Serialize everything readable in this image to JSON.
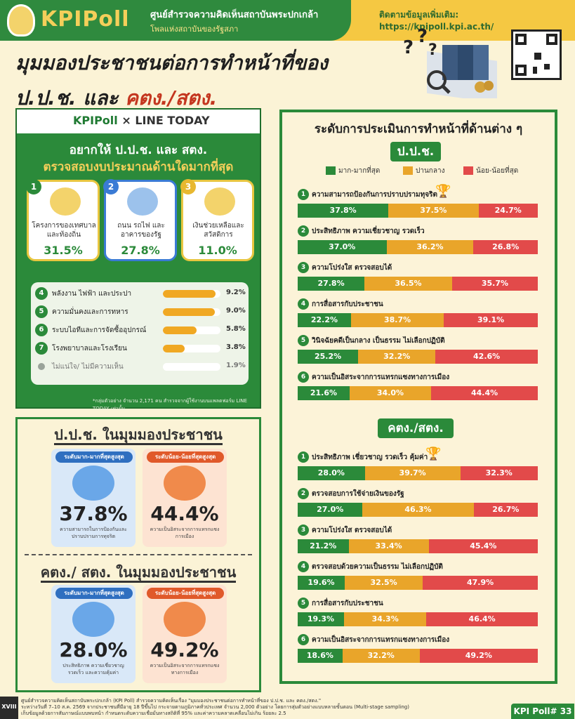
{
  "header": {
    "logo_text": "KPIPoll",
    "org_line1": "ศูนย์สำรวจความคิดเห็นสถาบันพระปกเกล้า",
    "org_line2": "โพลแห่งสถาบันของรัฐสภา",
    "contact": "ติดตามข้อมูลเพิ่มเติม: https://kpipoll.kpi.ac.th/",
    "title_line1": "มุมมองประชาชนต่อการทำหน้าที่ของ",
    "title_line2_a": "ป.ป.ช. และ ",
    "title_line2_b": "คตง./สตง."
  },
  "left_panel": {
    "brand_a": "KPIPoll",
    "brand_sep": "×",
    "brand_b": "LINE TODAY",
    "question_line1": "อยากให้ ป.ป.ช. และ สตง.",
    "question_line2": "ตรวจสอบงบประมาณด้านใดมากที่สุด",
    "top3": [
      {
        "num": "1",
        "label": "โครงการของเทศบาลและท้องถิ่น",
        "pct": "31.5%",
        "color": "#2b8a3a"
      },
      {
        "num": "2",
        "label": "ถนน รถไฟ และอาคารของรัฐ",
        "pct": "27.8%",
        "color": "#3a7bd5"
      },
      {
        "num": "3",
        "label": "เงินช่วยเหลือและสวัสดิการ",
        "pct": "11.0%",
        "color": "#e8b830"
      }
    ],
    "others": [
      {
        "num": "4",
        "label": "พลังงาน ไฟฟ้า และประปา",
        "value": 9.2,
        "pct": "9.2%"
      },
      {
        "num": "5",
        "label": "ความมั่นคงและการทหาร",
        "value": 9.0,
        "pct": "9.0%"
      },
      {
        "num": "6",
        "label": "ระบบไอทีและการจัดซื้ออุปกรณ์",
        "value": 5.8,
        "pct": "5.8%"
      },
      {
        "num": "7",
        "label": "โรงพยาบาลและโรงเรียน",
        "value": 3.8,
        "pct": "3.8%"
      },
      {
        "num": "",
        "label": "ไม่แน่ใจ/ ไม่มีความเห็น",
        "value": 1.9,
        "pct": "1.9%"
      }
    ],
    "note": "*กลุ่มตัวอย่าง จำนวน 2,171 คน สำรวจจากผู้ใช้งานบนแพลตฟอร์ม LINE TODAY เท่านั้น"
  },
  "view_panel": {
    "nacc_heading": "ป.ป.ช. ในมุมมองประชาชน",
    "nacc_high": {
      "tag": "ระดับมาก-มากที่สุดสูงสุด",
      "value": "37.8%",
      "caption": "ความสามารถในการป้องกันและปราบปรามการทุจริต"
    },
    "nacc_low": {
      "tag": "ระดับน้อย-น้อยที่สุดสูงสุด",
      "value": "44.4%",
      "caption": "ความเป็นอิสระจากการแทรกแซงการเมือง"
    },
    "sao_heading": "คตง./ สตง. ในมุมมองประชาชน",
    "sao_high": {
      "tag": "ระดับมาก-มากที่สุดสูงสุด",
      "value": "28.0%",
      "caption": "ประสิทธิภาพ ความเชี่ยวชาญ รวดเร็ว และความคุ้มค่า"
    },
    "sao_low": {
      "tag": "ระดับน้อย-น้อยที่สุดสูงสุด",
      "value": "49.2%",
      "caption": "ความเป็นอิสระจากการแทรกแซงทางการเมือง"
    }
  },
  "right_panel": {
    "title": "ระดับการประเมินการทำหน้าที่ด้านต่าง ๆ",
    "nacc_pill": "ป.ป.ช.",
    "sao_pill": "คตง./สตง.",
    "legend": [
      {
        "label": "มาก-มากที่สุด",
        "color": "#2b8a3a"
      },
      {
        "label": "ปานกลาง",
        "color": "#e9a52a"
      },
      {
        "label": "น้อย-น้อยที่สุด",
        "color": "#e24a4a"
      }
    ]
  },
  "chart_data": [
    {
      "type": "bar",
      "title": "ป.ป.ช.",
      "series_names": [
        "มาก-มากที่สุด",
        "ปานกลาง",
        "น้อย-น้อยที่สุด"
      ],
      "categories": [
        "ความสามารถป้องกันการปราบปรามทุจริต",
        "ประสิทธิภาพ ความเชี่ยวชาญ รวดเร็ว",
        "ความโปร่งใส ตรวจสอบได้",
        "การสื่อสารกับประชาชน",
        "วินิจฉัยคดีเป็นกลาง เป็นธรรม ไม่เลือกปฏิบัติ",
        "ความเป็นอิสระจากการแทรกแซงทางการเมือง"
      ],
      "rows": [
        {
          "num": "1",
          "values": [
            37.8,
            37.5,
            24.7
          ],
          "labels": [
            "37.8%",
            "37.5%",
            "24.7%"
          ],
          "trophy": true
        },
        {
          "num": "2",
          "values": [
            37.0,
            36.2,
            26.8
          ],
          "labels": [
            "37.0%",
            "36.2%",
            "26.8%"
          ],
          "trophy": false
        },
        {
          "num": "3",
          "values": [
            27.8,
            36.5,
            35.7
          ],
          "labels": [
            "27.8%",
            "36.5%",
            "35.7%"
          ],
          "trophy": false
        },
        {
          "num": "4",
          "values": [
            22.2,
            38.7,
            39.1
          ],
          "labels": [
            "22.2%",
            "38.7%",
            "39.1%"
          ],
          "trophy": false
        },
        {
          "num": "5",
          "values": [
            25.2,
            32.2,
            42.6
          ],
          "labels": [
            "25.2%",
            "32.2%",
            "42.6%"
          ],
          "trophy": false
        },
        {
          "num": "6",
          "values": [
            21.6,
            34.0,
            44.4
          ],
          "labels": [
            "21.6%",
            "34.0%",
            "44.4%"
          ],
          "trophy": false
        }
      ]
    },
    {
      "type": "bar",
      "title": "คตง./สตง.",
      "series_names": [
        "มาก-มากที่สุด",
        "ปานกลาง",
        "น้อย-น้อยที่สุด"
      ],
      "categories": [
        "ประสิทธิภาพ เชี่ยวชาญ รวดเร็ว คุ้มค่า",
        "ตรวจสอบการใช้จ่ายเงินของรัฐ",
        "ความโปร่งใส ตรวจสอบได้",
        "ตรวจสอบด้วยความเป็นธรรม ไม่เลือกปฏิบัติ",
        "การสื่อสารกับประชาชน",
        "ความเป็นอิสระจากการแทรกแซงทางการเมือง"
      ],
      "rows": [
        {
          "num": "1",
          "values": [
            28.0,
            39.7,
            32.3
          ],
          "labels": [
            "28.0%",
            "39.7%",
            "32.3%"
          ],
          "trophy": true
        },
        {
          "num": "2",
          "values": [
            27.0,
            46.3,
            26.7
          ],
          "labels": [
            "27.0%",
            "46.3%",
            "26.7%"
          ],
          "trophy": false
        },
        {
          "num": "3",
          "values": [
            21.2,
            33.4,
            45.4
          ],
          "labels": [
            "21.2%",
            "33.4%",
            "45.4%"
          ],
          "trophy": false
        },
        {
          "num": "4",
          "values": [
            19.6,
            32.5,
            47.9
          ],
          "labels": [
            "19.6%",
            "32.5%",
            "47.9%"
          ],
          "trophy": false
        },
        {
          "num": "5",
          "values": [
            19.3,
            34.3,
            46.4
          ],
          "labels": [
            "19.3%",
            "34.3%",
            "46.4%"
          ],
          "trophy": false
        },
        {
          "num": "6",
          "values": [
            18.6,
            32.2,
            49.2
          ],
          "labels": [
            "18.6%",
            "32.2%",
            "49.2%"
          ],
          "trophy": false
        }
      ]
    }
  ],
  "footer": {
    "page_tag": "XVIII",
    "line1": "ศูนย์สำรวจความคิดเห็นสถาบันพระปกเกล้า (KPI Poll) สำรวจความคิดเห็นเรื่อง \"มุมมองประชาชนต่อการทำหน้าที่ของ ป.ป.ช. และ คตง./สตง.\"",
    "line2": "ระหว่างวันที่ 7–10 ส.ค. 2569 จากประชาชนที่มีอายุ 18 ปีขึ้นไป กระจายตามภูมิภาคทั่วประเทศ จำนวน 2,000 ตัวอย่าง โดยการสุ่มตัวอย่างแบบหลายขั้นตอน (Multi-stage sampling)",
    "line3": "เก็บข้อมูลด้วยการสัมภาษณ์แบบพบหน้า กำหนดระดับความเชื่อมั่นทางสถิติที่ 95% และค่าความคลาดเคลื่อนไม่เกิน ร้อยละ 2.5",
    "badge": "KPI Poll# 33"
  }
}
